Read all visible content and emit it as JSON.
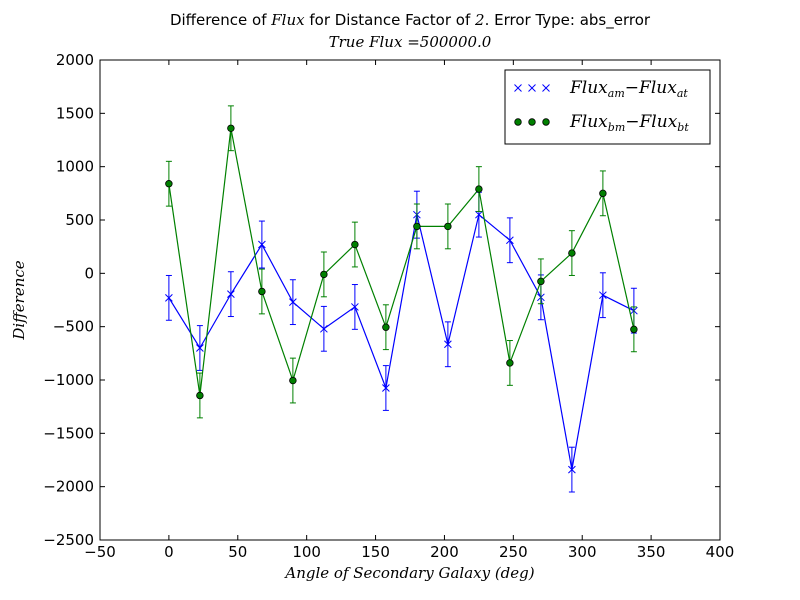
{
  "chart_data": {
    "type": "line",
    "title": {
      "pre": "Difference of ",
      "italic_word": "Flux",
      "mid": " for Distance Factor of ",
      "factor": "2",
      "post": ". Error Type: abs_error"
    },
    "subtitle": {
      "italic": "True Flux",
      "rest": " =500000.0"
    },
    "xlabel": "Angle of Secondary Galaxy (deg)",
    "ylabel": "Difference",
    "xlim": [
      -50,
      400
    ],
    "ylim": [
      -2500,
      2000
    ],
    "xticks": [
      "−50",
      "0",
      "50",
      "100",
      "150",
      "200",
      "250",
      "300",
      "350",
      "400"
    ],
    "yticks": [
      "2000",
      "1500",
      "1000",
      "500",
      "0",
      "−500",
      "−1000",
      "−1500",
      "−2000",
      "−2500"
    ],
    "xtick_values": [
      -50,
      0,
      50,
      100,
      150,
      200,
      250,
      300,
      350,
      400
    ],
    "ytick_values": [
      2000,
      1500,
      1000,
      500,
      0,
      -500,
      -1000,
      -1500,
      -2000,
      -2500
    ],
    "legend_position": "top-right",
    "series": [
      {
        "name": "Flux_am − Flux_at",
        "legend_main": "Flux",
        "legend_sub1": "am",
        "legend_sep": "−",
        "legend_main2": "Flux",
        "legend_sub2": "at",
        "color": "#0000ff",
        "marker": "x",
        "x": [
          0,
          22.5,
          45,
          67.5,
          90,
          112.5,
          135,
          157.5,
          180,
          202.5,
          225,
          247.5,
          270,
          292.5,
          315,
          337.5
        ],
        "y": [
          -230,
          -700,
          -195,
          270,
          -270,
          -520,
          -315,
          -1075,
          550,
          -665,
          550,
          310,
          -225,
          -1840,
          -205,
          -350
        ],
        "err": [
          210,
          210,
          210,
          220,
          210,
          210,
          210,
          210,
          220,
          210,
          210,
          210,
          210,
          210,
          210,
          210
        ]
      },
      {
        "name": "Flux_bm − Flux_bt",
        "legend_main": "Flux",
        "legend_sub1": "bm",
        "legend_sep": "−",
        "legend_main2": "Flux",
        "legend_sub2": "bt",
        "color": "#008000",
        "marker": "o",
        "x": [
          0,
          22.5,
          45,
          67.5,
          90,
          112.5,
          135,
          157.5,
          180,
          202.5,
          225,
          247.5,
          270,
          292.5,
          315,
          337.5
        ],
        "y": [
          840,
          -1145,
          1360,
          -170,
          -1005,
          -10,
          270,
          -505,
          440,
          440,
          790,
          -840,
          -75,
          190,
          750,
          -525
        ],
        "err": [
          210,
          210,
          210,
          210,
          210,
          210,
          210,
          210,
          210,
          210,
          210,
          210,
          210,
          210,
          210,
          210
        ]
      }
    ]
  }
}
